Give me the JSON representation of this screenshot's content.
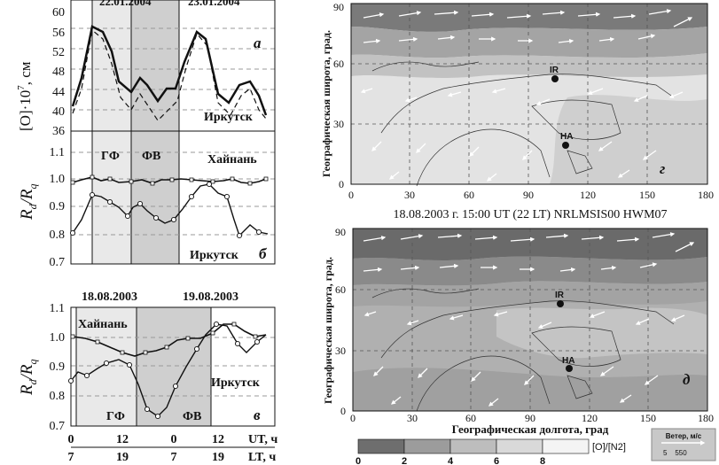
{
  "left_panels": {
    "a": {
      "letter": "а",
      "ylabel_main": "[O]·10",
      "ylabel_exp": "7",
      "ylabel_unit": ", см",
      "date_left": "22.01.2004",
      "date_right": "23.01.2004",
      "station": "Иркутск",
      "yticks": [
        "36",
        "40",
        "44",
        "48",
        "52",
        "56",
        "60"
      ]
    },
    "b": {
      "letter": "б",
      "ylabel_r": "R",
      "ylabel_d": "d",
      "ylabel_q": "q",
      "region_gf": "ГФ",
      "region_fv": "ФВ",
      "station_top": "Хайнань",
      "station_bottom": "Иркутск",
      "yticks": [
        "0.7",
        "0.8",
        "0.9",
        "1.0",
        "1.1"
      ]
    },
    "c": {
      "letter": "в",
      "date_left": "18.08.2003",
      "date_right": "19.08.2003",
      "region_gf": "ГФ",
      "region_fv": "ФВ",
      "station_top": "Хайнань",
      "station_bottom": "Иркутск",
      "yticks": [
        "0.7",
        "0.8",
        "0.9",
        "1.0",
        "1.1"
      ],
      "xticks_ut": [
        "0",
        "12",
        "0",
        "12"
      ],
      "xticks_lt": [
        "7",
        "19",
        "7",
        "19"
      ],
      "ut_label": "UT, ч",
      "lt_label": "LT, ч"
    }
  },
  "maps": {
    "top_letter": "г",
    "bottom_letter": "д",
    "title_between": "18.08.2003 г. 15:00 UT (22 LT) NRLMSIS00 HWM07",
    "ylabel": "Географическая широта, град.",
    "xlabel": "Географическая долгота, град",
    "yticks": [
      "0",
      "30",
      "60",
      "90"
    ],
    "xticks": [
      "0",
      "30",
      "60",
      "90",
      "120",
      "150",
      "180"
    ],
    "station_ir": "IR",
    "station_ha": "HA"
  },
  "colorbar": {
    "ticks": [
      "0",
      "2",
      "4",
      "6",
      "8"
    ],
    "label": "[O]/[N2]",
    "colors": [
      "#6e6e6e",
      "#9c9c9c",
      "#bdbdbd",
      "#d9d9d9",
      "#f4f4f4"
    ]
  },
  "wind_legend": {
    "title": "Ветер, м/с",
    "values": "5    550"
  }
}
